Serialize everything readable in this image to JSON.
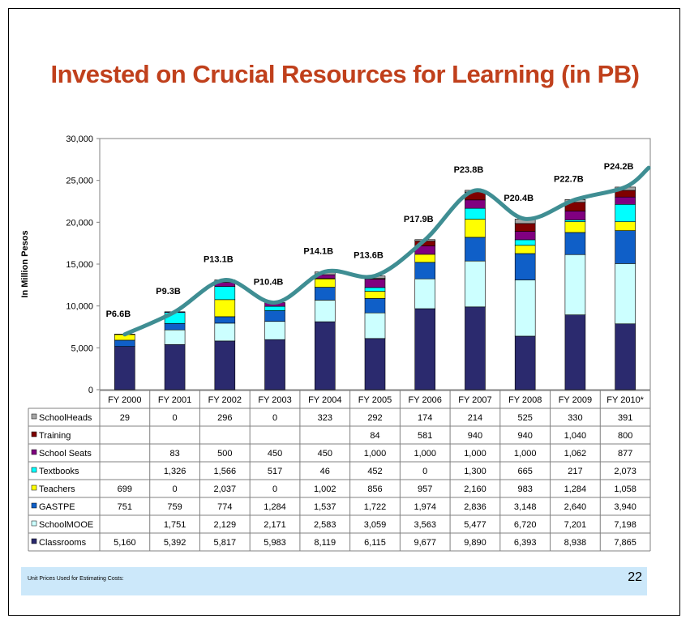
{
  "title": "Invested on Crucial Resources for Learning  (in PB)",
  "footer": {
    "note": "Unit Prices Used for Estimating Costs:",
    "page_number": "22"
  },
  "colors": {
    "title": "#C0401C",
    "trend_line": "#3F8E93",
    "footer_bg": "#CCE8FA"
  },
  "chart_data": {
    "type": "bar",
    "stacked": true,
    "categories": [
      "FY 2000",
      "FY 2001",
      "FY 2002",
      "FY 2003",
      "FY 2004",
      "FY 2005",
      "FY 2006",
      "FY 2007",
      "FY 2008",
      "FY 2009",
      "FY 2010*"
    ],
    "ylabel": "In Million Pesos",
    "ylim": [
      0,
      30000
    ],
    "yticks": [
      "0",
      "5,000",
      "10,000",
      "15,000",
      "20,000",
      "25,000",
      "30,000"
    ],
    "ytick_values": [
      0,
      5000,
      10000,
      15000,
      20000,
      25000,
      30000
    ],
    "grid": false,
    "series": [
      {
        "name": "Classrooms",
        "color": "#2B2A6E",
        "values": [
          5160,
          5392,
          5817,
          5983,
          8119,
          6115,
          9677,
          9890,
          6393,
          8938,
          7865
        ],
        "labels": [
          "5,160",
          "5,392",
          "5,817",
          "5,983",
          "8,119",
          "6,115",
          "9,677",
          "9,890",
          "6,393",
          "8,938",
          "7,865"
        ]
      },
      {
        "name": "SchoolMOOE",
        "color": "#CCFFFF",
        "values": [
          null,
          1751,
          2129,
          2171,
          2583,
          3059,
          3563,
          5477,
          6720,
          7201,
          7198
        ],
        "labels": [
          "",
          "1,751",
          "2,129",
          "2,171",
          "2,583",
          "3,059",
          "3,563",
          "5,477",
          "6,720",
          "7,201",
          "7,198"
        ]
      },
      {
        "name": "GASTPE",
        "color": "#0F5FC8",
        "values": [
          751,
          759,
          774,
          1284,
          1537,
          1722,
          1974,
          2836,
          3148,
          2640,
          3940
        ],
        "labels": [
          "751",
          "759",
          "774",
          "1,284",
          "1,537",
          "1,722",
          "1,974",
          "2,836",
          "3,148",
          "2,640",
          "3,940"
        ]
      },
      {
        "name": "Teachers",
        "color": "#FFFF00",
        "values": [
          699,
          0,
          2037,
          0,
          1002,
          856,
          957,
          2160,
          983,
          1284,
          1058
        ],
        "labels": [
          "699",
          "0",
          "2,037",
          "0",
          "1,002",
          "856",
          "957",
          "2,160",
          "983",
          "1,284",
          "1,058"
        ]
      },
      {
        "name": "Textbooks",
        "color": "#00FFFF",
        "values": [
          null,
          1326,
          1566,
          517,
          46,
          452,
          0,
          1300,
          665,
          217,
          2073
        ],
        "labels": [
          "",
          "1,326",
          "1,566",
          "517",
          "46",
          "452",
          "0",
          "1,300",
          "665",
          "217",
          "2,073"
        ]
      },
      {
        "name": "School Seats",
        "color": "#800080",
        "values": [
          null,
          83,
          500,
          450,
          450,
          1000,
          1000,
          1000,
          1000,
          1062,
          877
        ],
        "labels": [
          "",
          "83",
          "500",
          "450",
          "450",
          "1,000",
          "1,000",
          "1,000",
          "1,000",
          "1,062",
          "877"
        ]
      },
      {
        "name": "Training",
        "color": "#7F0000",
        "values": [
          null,
          null,
          null,
          null,
          null,
          84,
          581,
          940,
          940,
          1040,
          800
        ],
        "labels": [
          "",
          "",
          "",
          "",
          "",
          "84",
          "581",
          "940",
          "940",
          "1,040",
          "800"
        ]
      },
      {
        "name": "SchoolHeads",
        "color": "#A6A6A6",
        "values": [
          29,
          0,
          296,
          0,
          323,
          292,
          174,
          214,
          525,
          330,
          391
        ],
        "labels": [
          "29",
          "0",
          "296",
          "0",
          "323",
          "292",
          "174",
          "214",
          "525",
          "330",
          "391"
        ]
      }
    ],
    "table_row_order": [
      "SchoolHeads",
      "Training",
      "School Seats",
      "Textbooks",
      "Teachers",
      "GASTPE",
      "SchoolMOOE",
      "Classrooms"
    ],
    "annotations": [
      "P6.6B",
      "P9.3B",
      "P13.1B",
      "P10.4B",
      "P14.1B",
      "P13.6B",
      "P17.9B",
      "P23.8B",
      "P20.4B",
      "P22.7B",
      "P24.2B"
    ],
    "annotation_values": [
      6.6,
      9.3,
      13.1,
      10.4,
      14.1,
      13.6,
      17.9,
      23.8,
      20.4,
      22.7,
      24.2
    ]
  }
}
